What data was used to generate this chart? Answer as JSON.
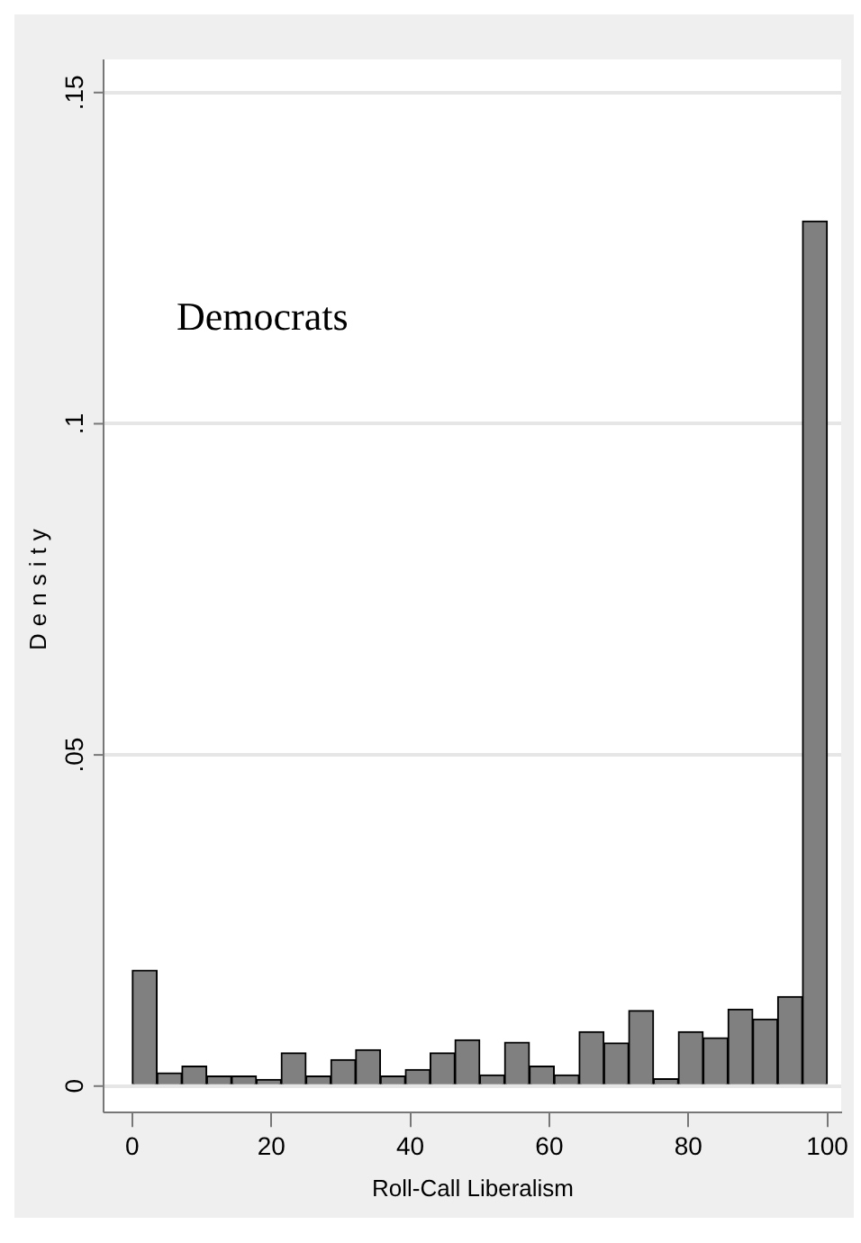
{
  "chart_data": {
    "type": "histogram",
    "xlabel": "Roll-Call Liberalism",
    "ylabel": "Density",
    "annotations": [
      "Democrats"
    ],
    "bins": [
      0,
      3.57,
      7.14,
      10.71,
      14.29,
      17.86,
      21.43,
      25,
      28.57,
      32.14,
      35.71,
      39.29,
      42.86,
      46.43,
      50,
      53.57,
      57.14,
      60.71,
      64.29,
      67.86,
      71.43,
      75,
      78.57,
      82.14,
      85.71,
      89.29,
      92.86,
      96.43,
      100
    ],
    "values": [
      0.0175,
      0.002,
      0.003,
      0.0015,
      0.0015,
      0.001,
      0.005,
      0.0015,
      0.004,
      0.0055,
      0.0015,
      0.0025,
      0.005,
      0.007,
      0.0017,
      0.0066,
      0.003,
      0.0017,
      0.0082,
      0.0065,
      0.0114,
      0.0011,
      0.0082,
      0.0073,
      0.0116,
      0.0101,
      0.0135,
      0.1306
    ],
    "color": "#808080",
    "xlim": [
      -4,
      102
    ],
    "ylim": [
      -0.004,
      0.155
    ],
    "xticks": [
      0,
      20,
      40,
      60,
      80,
      100
    ],
    "yticks": [
      0,
      {
        "value": 0.05,
        "label": ".05"
      },
      {
        "value": 0.1,
        "label": ".1"
      },
      {
        "value": 0.15,
        "label": ".15"
      }
    ],
    "grid": "y"
  }
}
